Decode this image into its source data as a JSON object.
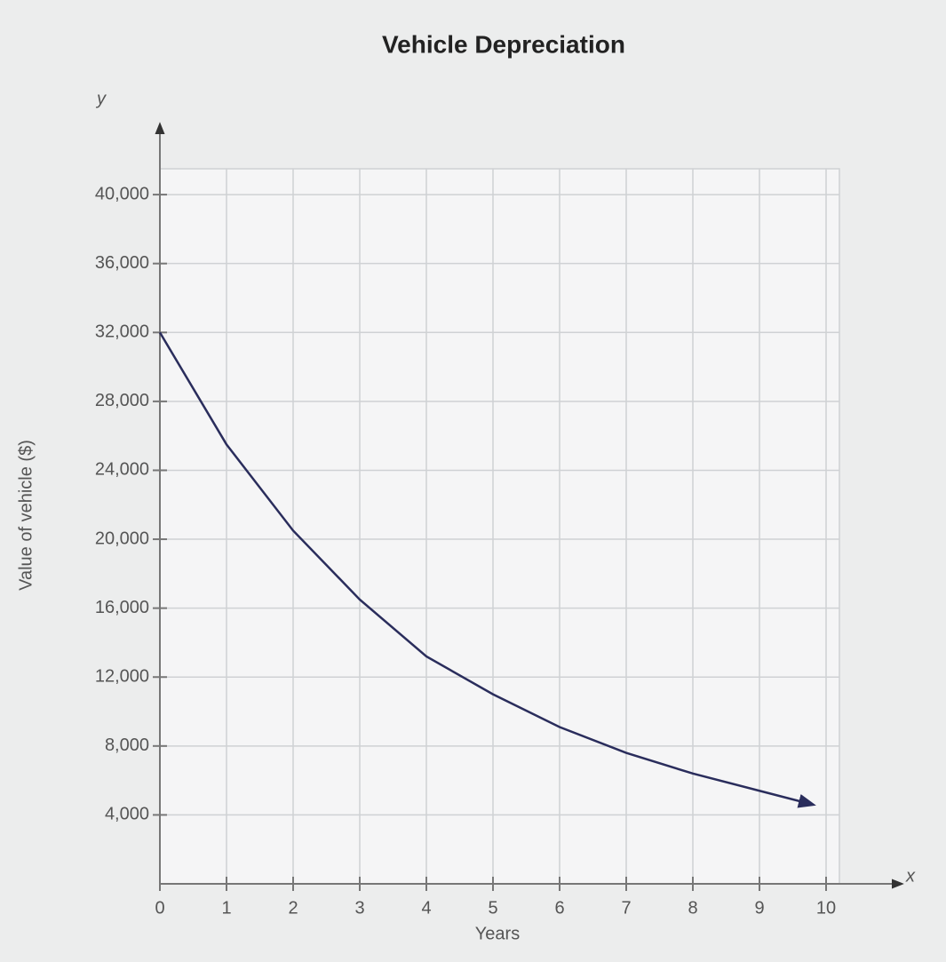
{
  "chart_data": {
    "type": "line",
    "title": "Vehicle Depreciation",
    "x_label": "Years",
    "y_label": "Value of vehicle ($)",
    "x_axis_symbol": "x",
    "y_axis_symbol": "y",
    "x": [
      0,
      1,
      2,
      3,
      4,
      5,
      6,
      7,
      8,
      9,
      9.8
    ],
    "values": [
      32000,
      25500,
      20500,
      16500,
      13200,
      11000,
      9100,
      7600,
      6400,
      5400,
      4600
    ],
    "color": "#2a2d5c",
    "xlim": [
      0,
      10.2
    ],
    "xticks": [
      0,
      1,
      2,
      3,
      4,
      5,
      6,
      7,
      8,
      9,
      10
    ],
    "ylim": [
      0,
      41500
    ],
    "yticks": [
      {
        "value": 4000,
        "label": "4,000"
      },
      {
        "value": 8000,
        "label": "8,000"
      },
      {
        "value": 12000,
        "label": "12,000"
      },
      {
        "value": 16000,
        "label": "16,000"
      },
      {
        "value": 20000,
        "label": "20,000"
      },
      {
        "value": 24000,
        "label": "24,000"
      },
      {
        "value": 28000,
        "label": "28,000"
      },
      {
        "value": 32000,
        "label": "32,000"
      },
      {
        "value": 36000,
        "label": "36,000"
      },
      {
        "value": 40000,
        "label": "40,000"
      }
    ],
    "grid": true
  }
}
